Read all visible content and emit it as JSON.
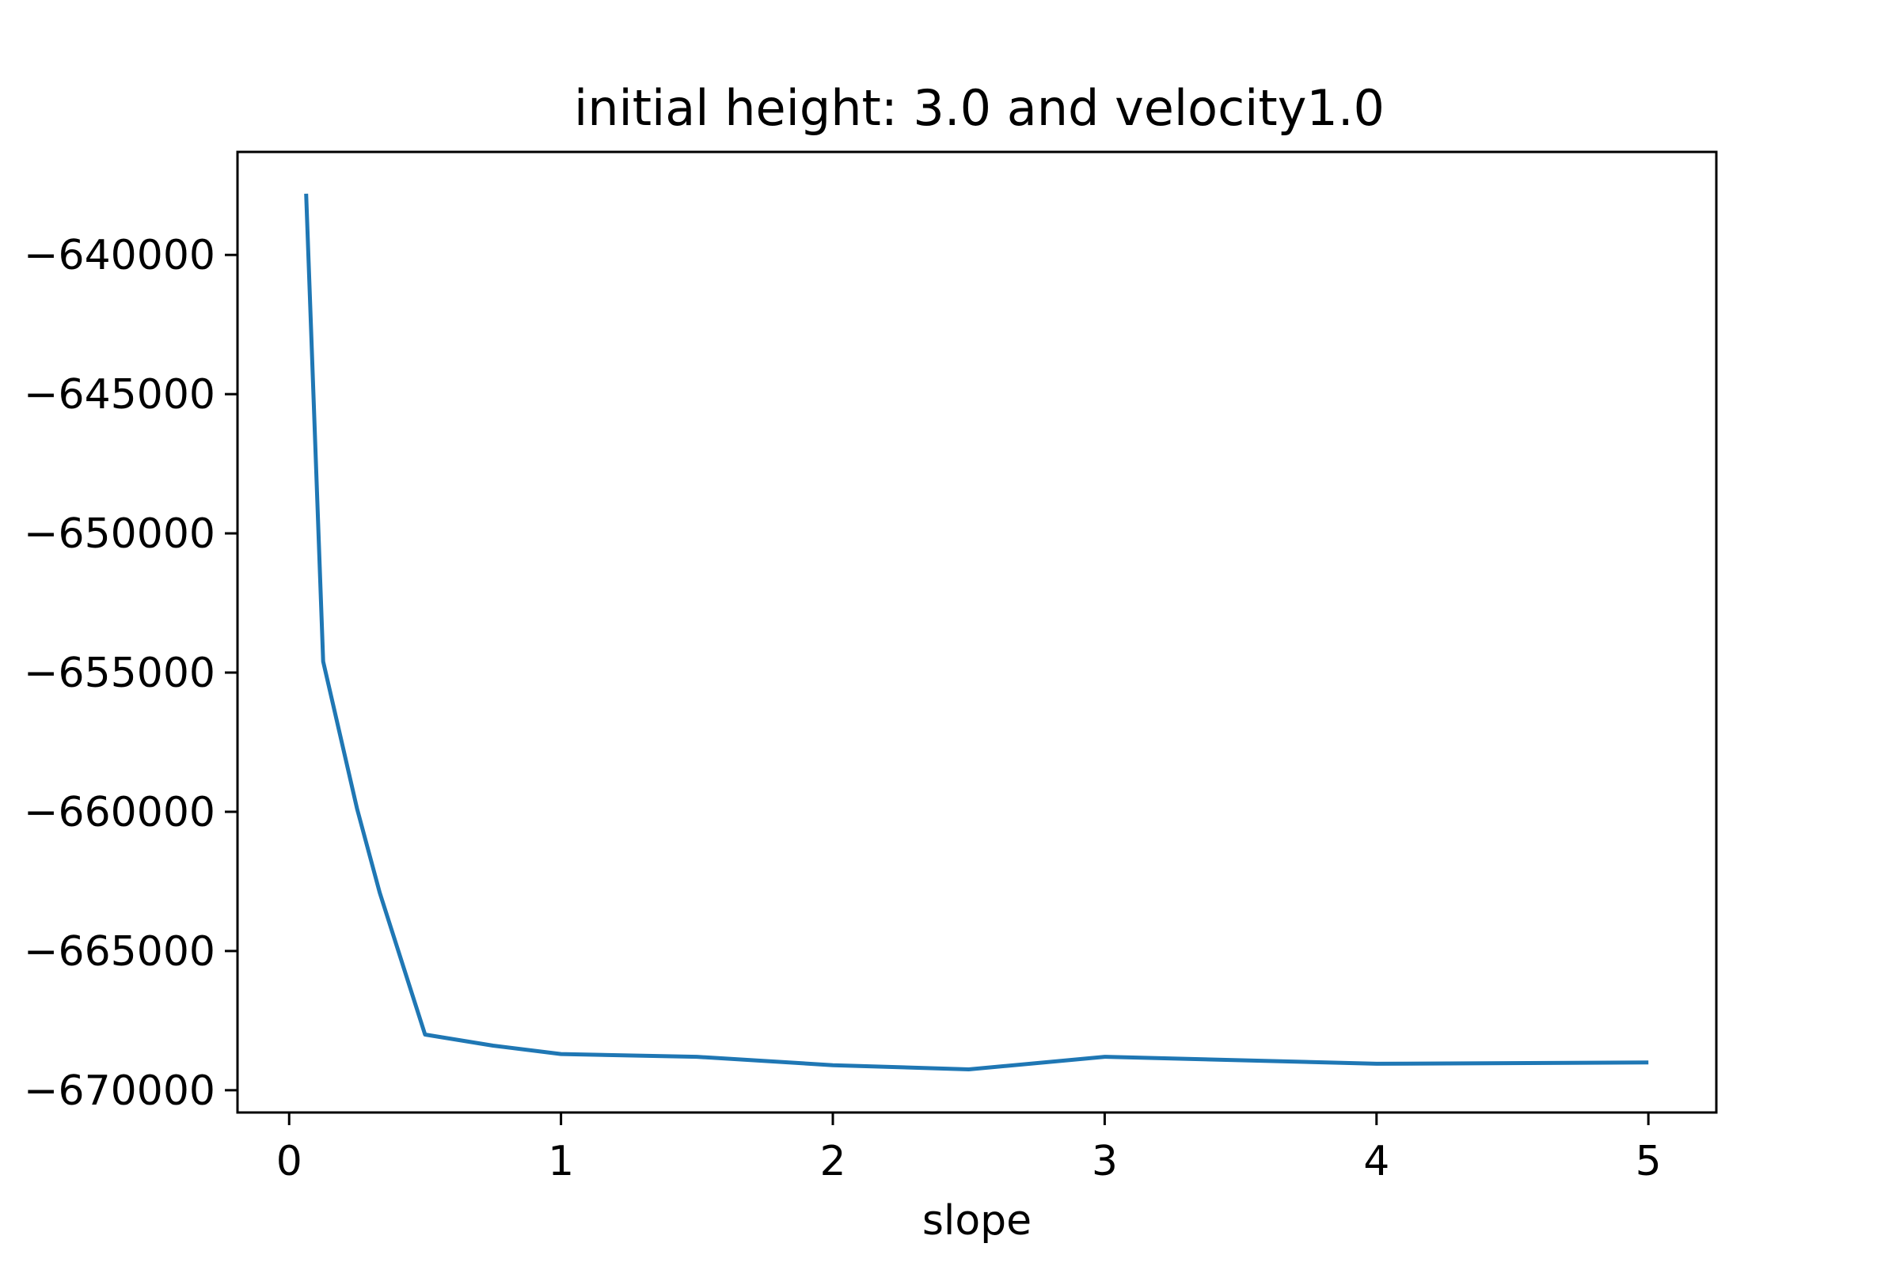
{
  "chart_data": {
    "type": "line",
    "title": "initial height: 3.0 and velocity1.0",
    "xlabel": "slope",
    "ylabel": "",
    "xlim": [
      -0.19,
      5.25
    ],
    "ylim": [
      -670800,
      -636300
    ],
    "xticks": [
      0,
      1,
      2,
      3,
      4,
      5
    ],
    "xtick_labels": [
      "0",
      "1",
      "2",
      "3",
      "4",
      "5"
    ],
    "yticks": [
      -640000,
      -645000,
      -650000,
      -655000,
      -660000,
      -665000,
      -670000
    ],
    "ytick_labels": [
      "−640000",
      "−645000",
      "−650000",
      "−655000",
      "−660000",
      "−665000",
      "−670000"
    ],
    "grid": false,
    "series": [
      {
        "color": "#1f77b4",
        "x": [
          0.0625,
          0.125,
          0.25,
          0.333,
          0.5,
          0.75,
          1.0,
          1.5,
          2.0,
          2.5,
          3.0,
          4.0,
          5.0
        ],
        "y": [
          -637800,
          -654600,
          -659900,
          -662900,
          -668000,
          -668400,
          -668700,
          -668800,
          -669100,
          -669250,
          -668800,
          -669050,
          -669000
        ]
      }
    ]
  }
}
